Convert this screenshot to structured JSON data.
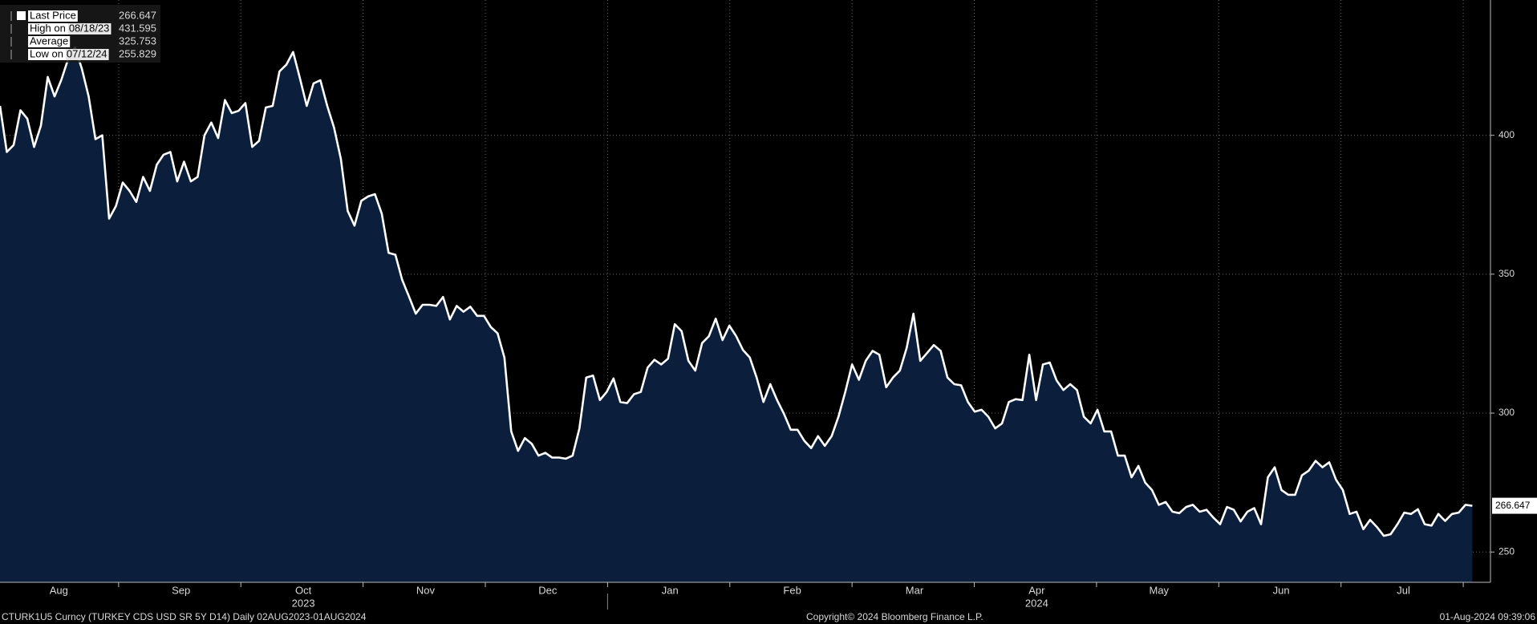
{
  "chart_data": {
    "type": "area",
    "series": [
      {
        "name": "Last Price",
        "color": "#ffffff",
        "fill": "#0b1f3d",
        "values": [
          410.6,
          394,
          396.5,
          409,
          406,
          395.8,
          403.5,
          421,
          414,
          420,
          427.5,
          431.595,
          424,
          414,
          398.6,
          400,
          370,
          374.5,
          383,
          380,
          376,
          385,
          380,
          389.4,
          393,
          394,
          383.4,
          390.5,
          383.4,
          385,
          400,
          404.6,
          399,
          412.7,
          408,
          408.8,
          411.6,
          395.8,
          398,
          410,
          410.6,
          423,
          425.4,
          430,
          420.5,
          410.6,
          418.7,
          419.8,
          410.6,
          402.8,
          391.5,
          372.8,
          367.5,
          376.4,
          378,
          378.8,
          371.8,
          357.7,
          357,
          348,
          342,
          335.8,
          339,
          339,
          338.6,
          341.8,
          333.7,
          338.6,
          336.5,
          338.3,
          335,
          335,
          331,
          328.7,
          320,
          293.4,
          286.4,
          291,
          289,
          284.7,
          285.7,
          284,
          284,
          283.6,
          284.7,
          294.5,
          312.8,
          313.5,
          304.7,
          307.6,
          312.5,
          304,
          303.6,
          306.8,
          307.6,
          316.4,
          319.2,
          317.5,
          319.6,
          332,
          329.5,
          318.8,
          315.3,
          325.2,
          327.7,
          334,
          326.3,
          331.5,
          327.7,
          322.7,
          320,
          312.8,
          304,
          310.4,
          304.7,
          299.8,
          294,
          294,
          290,
          287.4,
          291.7,
          288.2,
          291.7,
          298.7,
          307.6,
          317.5,
          312,
          318.8,
          322.4,
          321,
          309.3,
          312.8,
          315.3,
          323.4,
          335.8,
          318.8,
          321.6,
          324.5,
          322.4,
          312.8,
          310.4,
          310,
          304,
          300.5,
          301.2,
          298.7,
          294.5,
          296.3,
          304,
          305,
          304.7,
          321,
          304.7,
          317.5,
          318.2,
          311.8,
          308.3,
          310.4,
          308.3,
          298.7,
          296.3,
          301.2,
          293.4,
          293.4,
          284.7,
          284.7,
          276.9,
          281,
          275,
          272.3,
          267,
          268,
          264.5,
          264,
          266.2,
          267,
          264.5,
          265.2,
          262.4,
          260,
          266.2,
          265.2,
          261,
          264.5,
          265.8,
          260,
          276.9,
          280.5,
          272.3,
          270.6,
          270.6,
          277.6,
          279.3,
          282.8,
          280.5,
          282.3,
          276,
          272.3,
          263.7,
          264.5,
          258.2,
          261.6,
          259,
          255.829,
          256.4,
          260,
          264.2,
          263.7,
          265.4,
          260,
          259.5,
          263.7,
          261.2,
          263.7,
          264.2,
          267,
          266.647
        ]
      }
    ],
    "legend": [
      {
        "label": "Last Price",
        "value": 266.647
      },
      {
        "label": "High on",
        "date": "08/18/23",
        "value": 431.595
      },
      {
        "label": "Average",
        "value": 325.753
      },
      {
        "label": "Low on",
        "date": "07/12/24",
        "value": 255.829
      }
    ],
    "months": [
      "Aug",
      "Sep",
      "Oct",
      "Nov",
      "Dec",
      "Jan",
      "Feb",
      "Mar",
      "Apr",
      "May",
      "Jun",
      "Jul"
    ],
    "years": [
      "2023",
      "2024"
    ],
    "ylim": [
      239.1,
      448.7
    ],
    "yticks": [
      250,
      300,
      350,
      400
    ],
    "grid": true,
    "footer": {
      "security": "CTURK1U5 Curncy (TURKEY CDS USD SR 5Y D14)  Daily 02AUG2023-01AUG2024",
      "copyright": "Copyright© 2024 Bloomberg Finance L.P.",
      "timestamp": "01-Aug-2024 09:39:06"
    }
  }
}
